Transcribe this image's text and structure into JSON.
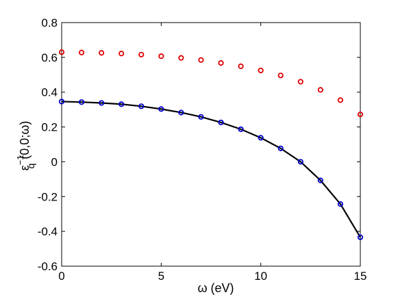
{
  "chart_data": {
    "type": "line",
    "title": "",
    "xlabel": "ω (eV)",
    "ylabel": {
      "base": "ε",
      "subscript": "q",
      "superscript": "−1",
      "argument": "(0,0;ω)"
    },
    "xlim": [
      0,
      15
    ],
    "ylim": [
      -0.6,
      0.8
    ],
    "xticks": [
      0,
      5,
      10,
      15
    ],
    "yticks": [
      -0.6,
      -0.4,
      -0.2,
      0,
      0.2,
      0.4,
      0.6,
      0.8
    ],
    "grid": false,
    "legend": false,
    "series": [
      {
        "style": "markers",
        "marker": "circle",
        "color": "#e00000",
        "x": [
          0,
          1,
          2,
          3,
          4,
          5,
          6,
          7,
          8,
          9,
          10,
          11,
          12,
          13,
          14,
          15
        ],
        "y": [
          0.63,
          0.628,
          0.626,
          0.622,
          0.616,
          0.607,
          0.597,
          0.585,
          0.568,
          0.549,
          0.525,
          0.496,
          0.46,
          0.413,
          0.354,
          0.272
        ]
      },
      {
        "style": "line+markers",
        "marker": "circle",
        "color": "#0000d0",
        "line_color": "#000000",
        "x": [
          0,
          1,
          2,
          3,
          4,
          5,
          6,
          7,
          8,
          9,
          10,
          11,
          12,
          13,
          14,
          15
        ],
        "y": [
          0.346,
          0.343,
          0.338,
          0.331,
          0.319,
          0.303,
          0.283,
          0.258,
          0.226,
          0.187,
          0.138,
          0.077,
          0.0,
          -0.107,
          -0.243,
          -0.434
        ]
      }
    ]
  }
}
